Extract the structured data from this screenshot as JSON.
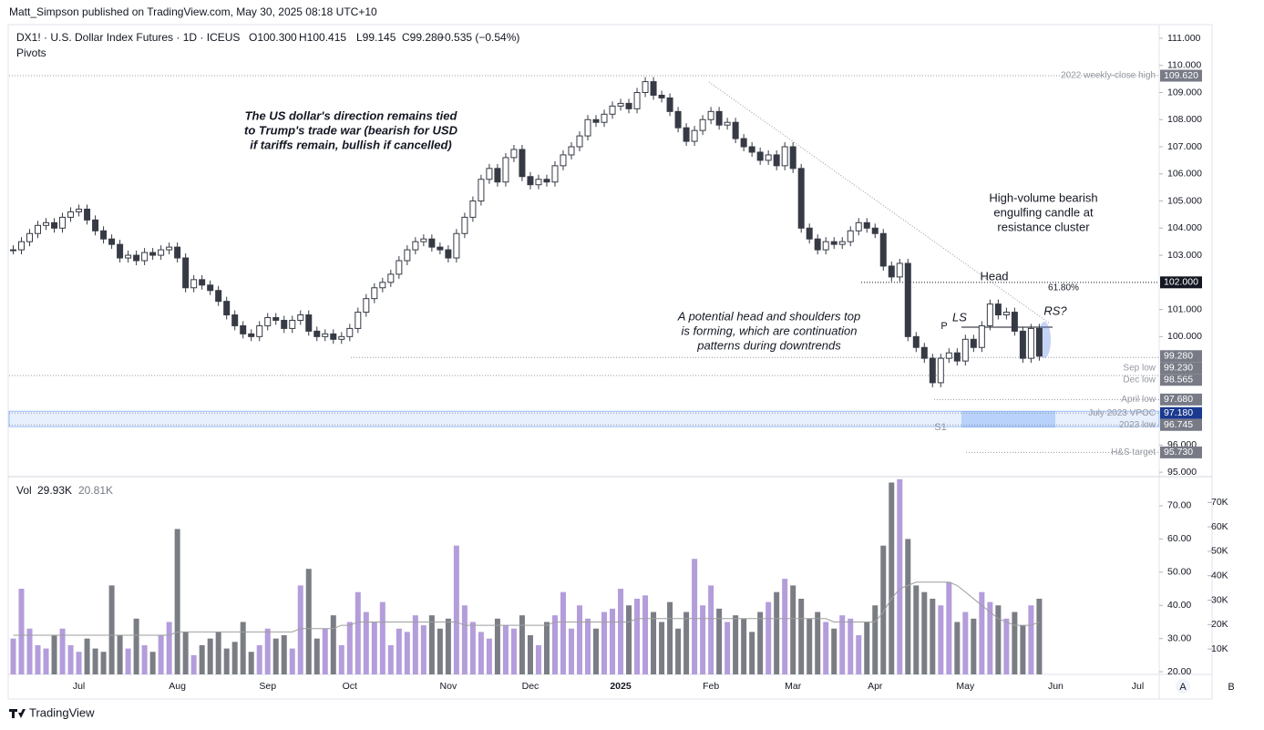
{
  "published": "Matt_Simpson published on TradingView.com, May 30, 2025 08:18 UTC+10",
  "header": {
    "symbol": "DX1! · U.S. Dollar Index Futures · 1D · ICEUS",
    "open": "O100.300",
    "high": "H100.415",
    "low": "L99.145",
    "close": "C99.280",
    "change": "−0.535 (−0.54%)",
    "indicator": "Pivots"
  },
  "chart_data": [
    {
      "type": "candlestick",
      "categories": [
        null,
        null,
        null,
        null,
        null,
        null,
        null,
        null,
        "Jul",
        null,
        null,
        null,
        null,
        null,
        null,
        null,
        null,
        null,
        null,
        null,
        "Aug",
        null,
        null,
        null,
        null,
        null,
        null,
        null,
        null,
        null,
        null,
        "Sep",
        null,
        null,
        null,
        null,
        null,
        null,
        null,
        null,
        null,
        "Oct",
        null,
        null,
        null,
        null,
        null,
        null,
        null,
        null,
        null,
        null,
        null,
        "Nov",
        null,
        null,
        null,
        null,
        null,
        null,
        null,
        null,
        null,
        "Dec",
        null,
        null,
        null,
        null,
        null,
        null,
        null,
        null,
        null,
        null,
        "2025",
        null,
        null,
        null,
        null,
        null,
        null,
        null,
        null,
        null,
        null,
        "Feb",
        null,
        null,
        null,
        null,
        null,
        null,
        null,
        null,
        null,
        "Mar",
        null,
        null,
        null,
        null,
        null,
        null,
        null,
        null,
        null,
        "Apr",
        null,
        null,
        null,
        null,
        null,
        null,
        null,
        null,
        null,
        null,
        "May",
        null,
        null,
        null,
        null,
        null,
        null,
        null,
        null,
        null,
        null,
        "Jun",
        null,
        null,
        null,
        null,
        null,
        null,
        null,
        null,
        null,
        "Jul",
        null,
        null
      ],
      "values": [
        103.2,
        103.5,
        103.8,
        104.1,
        104.2,
        104.0,
        104.4,
        104.6,
        104.7,
        104.3,
        103.9,
        103.6,
        103.4,
        102.9,
        103.0,
        102.8,
        103.1,
        103.0,
        103.2,
        103.3,
        102.9,
        101.8,
        102.1,
        101.9,
        101.7,
        101.3,
        100.8,
        100.4,
        100.1,
        100.0,
        100.4,
        100.7,
        100.6,
        100.3,
        100.6,
        100.8,
        100.2,
        100.0,
        100.1,
        99.9,
        100.0,
        100.3,
        100.9,
        101.4,
        101.8,
        102.0,
        102.3,
        102.8,
        103.2,
        103.5,
        103.6,
        103.3,
        103.2,
        102.9,
        103.8,
        104.4,
        105.0,
        105.8,
        106.2,
        105.7,
        106.6,
        106.9,
        105.9,
        105.6,
        105.8,
        105.7,
        106.3,
        106.7,
        107.0,
        107.4,
        108.0,
        107.9,
        108.2,
        108.5,
        108.6,
        108.4,
        109.0,
        109.4,
        108.9,
        108.8,
        108.3,
        107.7,
        107.2,
        107.6,
        108.0,
        108.3,
        107.8,
        107.9,
        107.3,
        107.0,
        106.8,
        106.5,
        106.7,
        106.3,
        107.0,
        106.2,
        104.0,
        103.6,
        103.2,
        103.5,
        103.4,
        103.5,
        103.9,
        104.2,
        104.0,
        103.8,
        102.6,
        102.2,
        102.7,
        100.0,
        99.6,
        99.2,
        98.3,
        99.2,
        99.4,
        99.1,
        99.9,
        99.6,
        100.4,
        101.2,
        100.8,
        100.9,
        100.2,
        99.2,
        100.3,
        99.28,
        null,
        null,
        null,
        null,
        null,
        null,
        null,
        null,
        null,
        null,
        null,
        null,
        null,
        null
      ],
      "ylim": [
        94.87,
        111.47
      ],
      "yticks": [
        {
          "value": 95,
          "label": "95.000"
        },
        {
          "value": 96,
          "label": "96.000"
        },
        {
          "value": 100,
          "label": "100.000"
        },
        {
          "value": 101,
          "label": "101.000"
        },
        {
          "value": 103,
          "label": "103.000"
        },
        {
          "value": 104,
          "label": "104.000"
        },
        {
          "value": 105,
          "label": "105.000"
        },
        {
          "value": 106,
          "label": "106.000"
        },
        {
          "value": 107,
          "label": "107.000"
        },
        {
          "value": 108,
          "label": "108.000"
        },
        {
          "value": 109,
          "label": "109.000"
        },
        {
          "value": 110,
          "label": "110.000"
        },
        {
          "value": 111,
          "label": "111.000"
        }
      ],
      "levels": [
        {
          "name": "2022 weekly-close high",
          "value": 109.62,
          "label": "109.620"
        },
        {
          "value": 102,
          "label": "102.000",
          "color": "#131722"
        },
        {
          "value": 99.28,
          "label": "99.280"
        },
        {
          "name": "Sep low",
          "value": 99.23,
          "label": "99.230"
        },
        {
          "name": "Dec low",
          "value": 98.565,
          "label": "98.565"
        },
        {
          "name": "April low",
          "value": 97.68,
          "label": "97.680"
        },
        {
          "name": "July 2023 VPOC",
          "value": 97.18,
          "label": "97.180",
          "color": "#1a3a8f"
        },
        {
          "name": "2023 low",
          "value": 96.745,
          "label": "96.745"
        },
        {
          "name": "H&S target",
          "value": 95.73,
          "label": "95.730"
        }
      ],
      "fib_label": "61.80%",
      "pivots": [
        "P",
        "S1"
      ],
      "pattern_labels": [
        "LS",
        "Head",
        "RS?"
      ],
      "annotations": [
        [
          "The US dollar's direction remains tied",
          "to Trump's trade war (bearish for USD",
          "if tariffs remain, bullish if cancelled)"
        ],
        [
          "High-volume bearish",
          "engulfing candle at",
          "resistance cluster"
        ],
        [
          "A potential head and shoulders top",
          "is forming, which are continuation",
          "patterns during downtrends"
        ]
      ],
      "up_color": "#ffffff",
      "down_color": "#363a45"
    },
    {
      "type": "bar",
      "title": "Vol",
      "legend": [
        "29.93K",
        "20.81K"
      ],
      "values": [
        30,
        45,
        33,
        28,
        27,
        31,
        33,
        28,
        26,
        30,
        27,
        26,
        46,
        31,
        27,
        36,
        28,
        26,
        31,
        35,
        63,
        32,
        25,
        28,
        30,
        32,
        27,
        29,
        35,
        26,
        28,
        33,
        30,
        31,
        27,
        46,
        51,
        30,
        33,
        37,
        28,
        35,
        44,
        38,
        35,
        41,
        28,
        33,
        32,
        37,
        34,
        37,
        33,
        36,
        58,
        40,
        35,
        32,
        30,
        36,
        34,
        33,
        37,
        31,
        28,
        35,
        37,
        44,
        33,
        40,
        36,
        33,
        38,
        39,
        45,
        40,
        42,
        43,
        38,
        35,
        41,
        33,
        38,
        54,
        40,
        46,
        39,
        35,
        37,
        36,
        32,
        38,
        41,
        44,
        48,
        46,
        42,
        36,
        38,
        35,
        33,
        37,
        36,
        31,
        35,
        40,
        58,
        77,
        78,
        60,
        46,
        44,
        42,
        40,
        47,
        35,
        38,
        36,
        44,
        41,
        40,
        36,
        38,
        34,
        40,
        42,
        null,
        null,
        null,
        null,
        null,
        null,
        null,
        null,
        null,
        null,
        null,
        null,
        null,
        null
      ],
      "ma": [
        31,
        31,
        31,
        31,
        31,
        31,
        31,
        31,
        31,
        31,
        31,
        31,
        31,
        31,
        31,
        31,
        31,
        31,
        31,
        31,
        32,
        32,
        32,
        32,
        32,
        32,
        32,
        32,
        32,
        32,
        32,
        32,
        32,
        32,
        32,
        33,
        33,
        33,
        33,
        33,
        34,
        34,
        35,
        35,
        35,
        35,
        35,
        35,
        35,
        35,
        35,
        35,
        35,
        35,
        35,
        34,
        34,
        34,
        34,
        34,
        34,
        34,
        34,
        34,
        34,
        34,
        35,
        35,
        35,
        35,
        35,
        35,
        35,
        35,
        35,
        35,
        36,
        36,
        36,
        36,
        36,
        36,
        36,
        36,
        36,
        36,
        36,
        36,
        36,
        36,
        36,
        36,
        36,
        36,
        36,
        36,
        36,
        36,
        36,
        36,
        35,
        35,
        35,
        35,
        35,
        35,
        38,
        42,
        45,
        46,
        47,
        47,
        47,
        47,
        47,
        46,
        44,
        42,
        40,
        38,
        36,
        35,
        34,
        34,
        34,
        35,
        null,
        null,
        null,
        null,
        null,
        null,
        null,
        null,
        null,
        null,
        null,
        null,
        null,
        null
      ],
      "up_color": "#b39ddb",
      "down_color": "#7b7d85",
      "ma_color": "#9e9e9e",
      "ylim": [
        19.2,
        78.5
      ],
      "yticks": [
        {
          "value": 20,
          "label": "20.00"
        },
        {
          "value": 30,
          "label": "30.00"
        },
        {
          "value": 40,
          "label": "40.00"
        },
        {
          "value": 50,
          "label": "50.00"
        },
        {
          "value": 60,
          "label": "60.00"
        },
        {
          "value": 70,
          "label": "70.00"
        }
      ],
      "y2lim": [
        -0.4,
        80.2
      ],
      "y2ticks": [
        {
          "value": 10,
          "label": "10K"
        },
        {
          "value": 20,
          "label": "20K"
        },
        {
          "value": 30,
          "label": "30K"
        },
        {
          "value": 40,
          "label": "40K"
        },
        {
          "value": 50,
          "label": "50K"
        },
        {
          "value": 60,
          "label": "60K"
        },
        {
          "value": 70,
          "label": "70K"
        }
      ]
    }
  ],
  "footer": {
    "logo": "TradingView",
    "buttons": [
      "A",
      "B"
    ]
  }
}
